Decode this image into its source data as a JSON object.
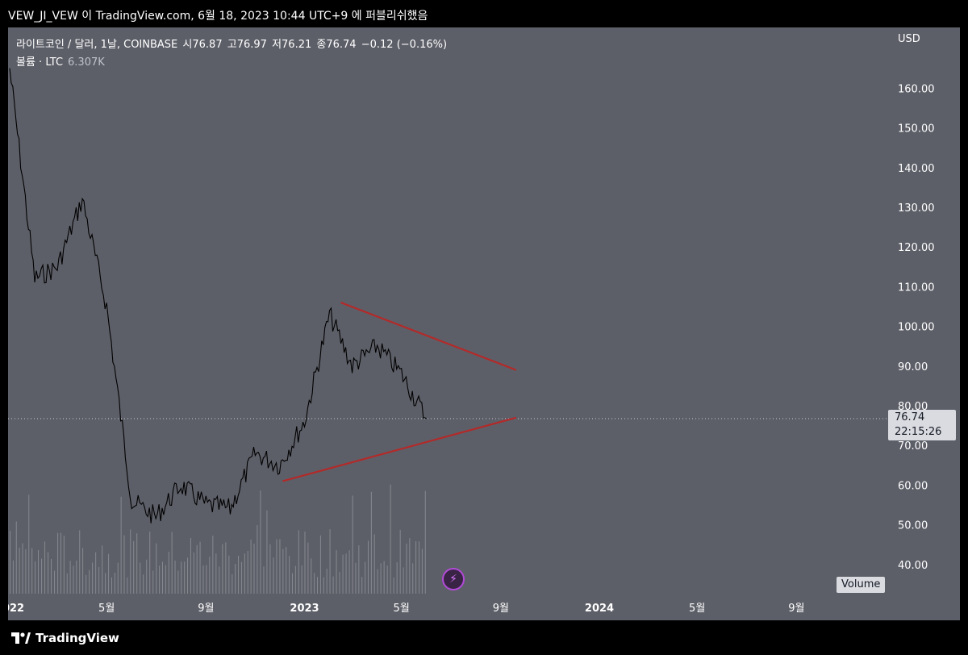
{
  "header": {
    "title": "VEW_JI_VEW 이 TradingView.com, 6월 18, 2023 10:44 UTC+9 에 퍼블리쉬했음"
  },
  "legend": {
    "symbol": "라이트코인 / 달러, 1날, COINBASE",
    "open_label": "시76.87",
    "high_label": "고76.97",
    "low_label": "저76.21",
    "close_label": "종76.74",
    "change_label": "−0.12 (−0.16%)",
    "volume_label": "볼륨 · LTC",
    "volume_value": "6.307K"
  },
  "axis": {
    "currency": "USD",
    "y_ticks": [
      "160.00",
      "150.00",
      "140.00",
      "130.00",
      "120.00",
      "110.00",
      "100.00",
      "90.00",
      "80.00",
      "70.00",
      "60.00",
      "50.00",
      "40.00"
    ],
    "x_ticks": [
      "2022",
      "5월",
      "9월",
      "2023",
      "5월",
      "9월",
      "2024",
      "5월",
      "9월"
    ]
  },
  "price_tag": {
    "price": "76.74",
    "countdown": "22:15:26"
  },
  "volume_badge": "Volume",
  "footer": {
    "brand": "TradingView"
  },
  "colors": {
    "background": "#5d5f68",
    "price_line": "#000000",
    "trendline": "#b22a2a",
    "volume_bar": "#a9abb3",
    "accent_purple": "#b24ad8"
  },
  "chart_data": {
    "type": "line",
    "title": "",
    "xlabel": "",
    "ylabel": "",
    "ylim": [
      35,
      168
    ],
    "x": [
      "2022-01",
      "2022-02",
      "2022-03",
      "2022-04",
      "2022-05",
      "2022-06",
      "2022-07",
      "2022-08",
      "2022-09",
      "2022-10",
      "2022-11",
      "2022-12",
      "2023-01",
      "2023-02",
      "2023-03",
      "2023-04",
      "2023-05",
      "2023-06"
    ],
    "series": [
      {
        "values": [
          165,
          112,
          115,
          132,
          105,
          56,
          52,
          60,
          55,
          54,
          68,
          65,
          76,
          103,
          90,
          95,
          88,
          76.74
        ]
      }
    ],
    "trendlines": [
      {
        "from": [
          "2023-02-15",
          106
        ],
        "to": [
          "2023-09-20",
          89
        ]
      },
      {
        "from": [
          "2022-12-05",
          61
        ],
        "to": [
          "2023-09-20",
          77
        ]
      }
    ],
    "last_price": 76.74,
    "grid": false,
    "legend": "top-left"
  }
}
